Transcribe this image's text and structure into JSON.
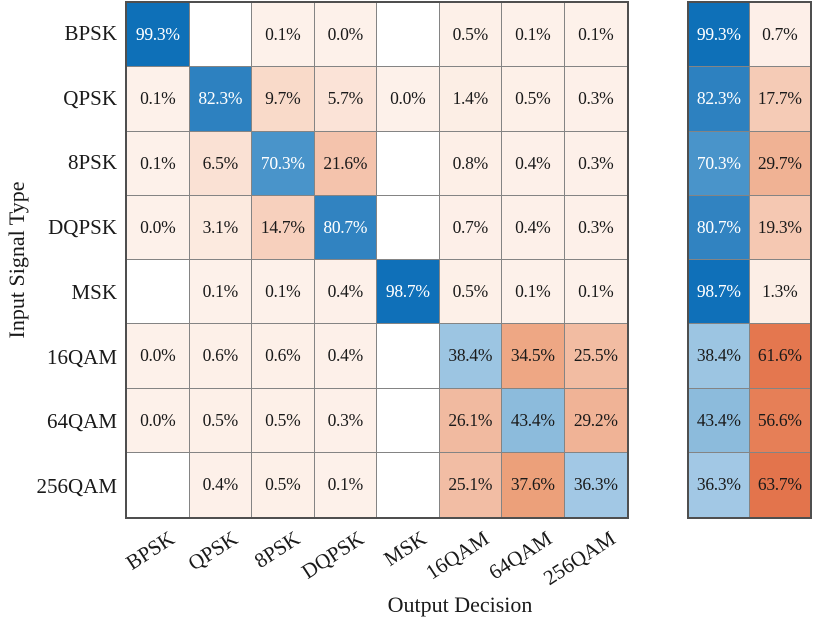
{
  "chart_data": {
    "type": "heatmap",
    "title": "",
    "xlabel": "Output Decision",
    "ylabel": "Input Signal Type",
    "categories": [
      "BPSK",
      "QPSK",
      "8PSK",
      "DQPSK",
      "MSK",
      "16QAM",
      "64QAM",
      "256QAM"
    ],
    "rows": [
      "BPSK",
      "QPSK",
      "8PSK",
      "DQPSK",
      "MSK",
      "16QAM",
      "64QAM",
      "256QAM"
    ],
    "matrix_percent": [
      [
        99.3,
        null,
        0.1,
        0.0,
        null,
        0.5,
        0.1,
        0.1
      ],
      [
        0.1,
        82.3,
        9.7,
        5.7,
        0.0,
        1.4,
        0.5,
        0.3
      ],
      [
        0.1,
        6.5,
        70.3,
        21.6,
        null,
        0.8,
        0.4,
        0.3
      ],
      [
        0.0,
        3.1,
        14.7,
        80.7,
        null,
        0.7,
        0.4,
        0.3
      ],
      [
        null,
        0.1,
        0.1,
        0.4,
        98.7,
        0.5,
        0.1,
        0.1
      ],
      [
        0.0,
        0.6,
        0.6,
        0.4,
        null,
        38.4,
        34.5,
        25.5
      ],
      [
        0.0,
        0.5,
        0.5,
        0.3,
        null,
        26.1,
        43.4,
        29.2
      ],
      [
        null,
        0.4,
        0.5,
        0.1,
        null,
        25.1,
        37.6,
        36.3
      ]
    ],
    "summary_percent": [
      [
        99.3,
        0.7
      ],
      [
        82.3,
        17.7
      ],
      [
        70.3,
        29.7
      ],
      [
        80.7,
        19.3
      ],
      [
        98.7,
        1.3
      ],
      [
        38.4,
        61.6
      ],
      [
        43.4,
        56.6
      ],
      [
        36.3,
        63.7
      ]
    ],
    "value_suffix": "%",
    "white_text_threshold": 65,
    "colors": {
      "blue_anchors": [
        [
          36,
          "#a3c9e5"
        ],
        [
          43.5,
          "#8cbbdc"
        ],
        [
          70,
          "#4a94ca"
        ],
        [
          82,
          "#2e81c0"
        ],
        [
          100,
          "#0d6fb8"
        ]
      ],
      "red_anchors": [
        [
          0,
          "#fdf1ea"
        ],
        [
          10,
          "#f9d9c8"
        ],
        [
          25,
          "#f2bda4"
        ],
        [
          40,
          "#eb9a72"
        ],
        [
          65,
          "#e3724a"
        ]
      ],
      "grid_line": "#848484",
      "outer_border": "#4f4f4f",
      "text_dark": "#1a1a1a",
      "text_light": "#ffffff",
      "empty_cell": "#ffffff"
    }
  }
}
